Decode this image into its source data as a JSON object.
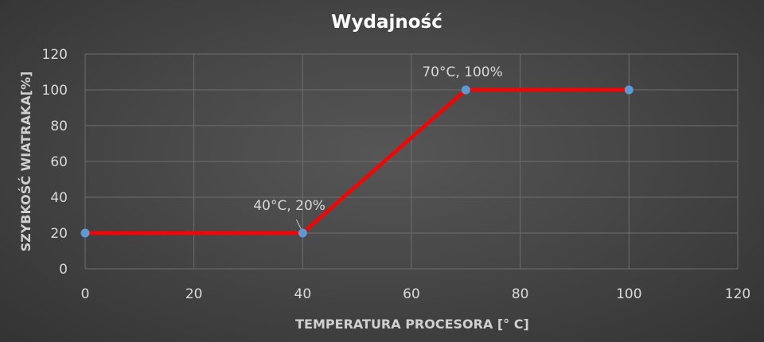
{
  "chart_data": {
    "type": "line",
    "title": "Wydajność",
    "xlabel": "TEMPERATURA PROCESORA [° C]",
    "ylabel": "SZYBKOŚĆ WIATRAKA[%]",
    "xlim": [
      0,
      120
    ],
    "ylim": [
      0,
      120
    ],
    "x_ticks": [
      0,
      20,
      40,
      60,
      80,
      100,
      120
    ],
    "y_ticks": [
      0,
      20,
      40,
      60,
      80,
      100,
      120
    ],
    "grid": true,
    "series": [
      {
        "color": "#ff0000",
        "marker_color": "#5b9bd5",
        "points": [
          {
            "x": 0,
            "y": 20
          },
          {
            "x": 40,
            "y": 20
          },
          {
            "x": 70,
            "y": 100
          },
          {
            "x": 100,
            "y": 100
          }
        ]
      }
    ],
    "annotations": [
      {
        "x": 40,
        "y": 20,
        "text": "40°C, 20%"
      },
      {
        "x": 70,
        "y": 100,
        "text": "70°C, 100%"
      }
    ],
    "colors": {
      "gridline": "#6e6e6e",
      "line": "#ff0000",
      "marker": "#5b9bd5",
      "text": "#d9d9d9"
    }
  }
}
